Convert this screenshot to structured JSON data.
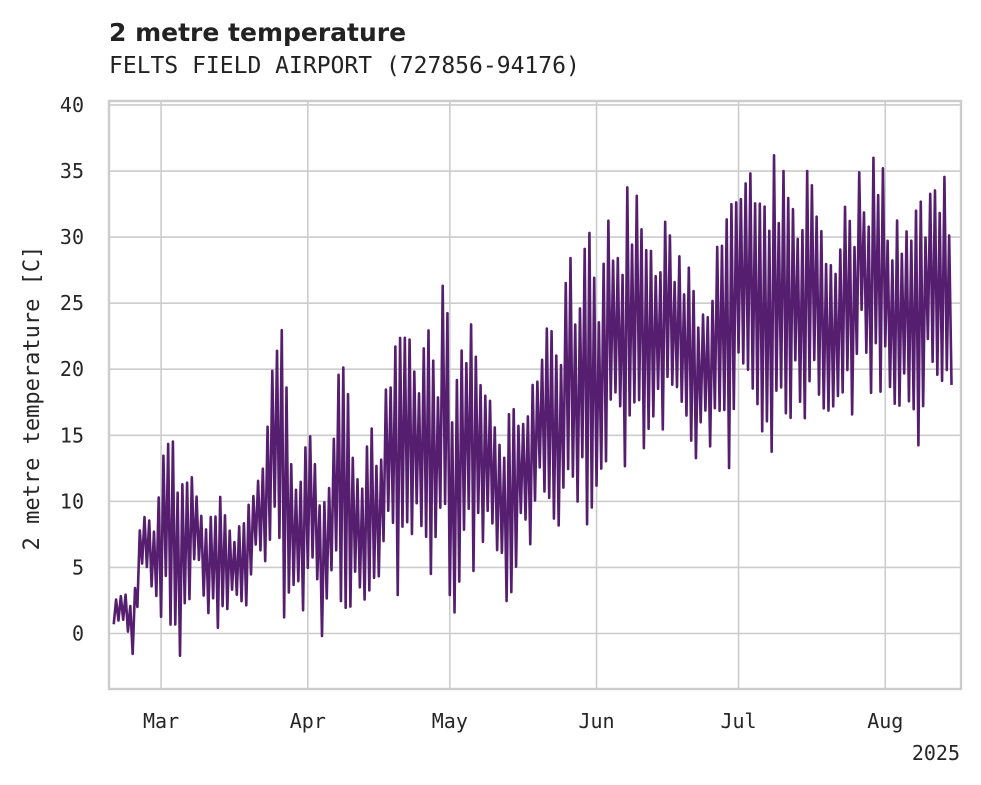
{
  "chart_data": {
    "type": "line",
    "title": "2 metre temperature",
    "subtitle": "FELTS FIELD AIRPORT (727856-94176)",
    "ylabel": "2 metre temperature [C]",
    "xlabel": "",
    "x_tick_labels": [
      "Mar",
      "Apr",
      "May",
      "Jun",
      "Jul",
      "Aug"
    ],
    "x_ticks": [
      "2025-03-01",
      "2025-04-01",
      "2025-05-01",
      "2025-06-01",
      "2025-07-01",
      "2025-08-01"
    ],
    "x_offset_label": "2025",
    "xlim": [
      "2025-02-18",
      "2025-08-17"
    ],
    "ylim": [
      -4.2,
      40.3
    ],
    "y_ticks": [
      0,
      5,
      10,
      15,
      20,
      25,
      30,
      35,
      40
    ],
    "grid": true,
    "line_color": "#561e6f",
    "series": [
      {
        "x": [
          "2025-02-19",
          "2025-02-21",
          "2025-02-23",
          "2025-02-25",
          "2025-02-27",
          "2025-03-01",
          "2025-03-03",
          "2025-03-05",
          "2025-03-07",
          "2025-03-09",
          "2025-03-11",
          "2025-03-13",
          "2025-03-15",
          "2025-03-17",
          "2025-03-19",
          "2025-03-21",
          "2025-03-23",
          "2025-03-25",
          "2025-03-27",
          "2025-03-29",
          "2025-03-31",
          "2025-04-02",
          "2025-04-04",
          "2025-04-06",
          "2025-04-08",
          "2025-04-10",
          "2025-04-12",
          "2025-04-14",
          "2025-04-16",
          "2025-04-18",
          "2025-04-20",
          "2025-04-22",
          "2025-04-24",
          "2025-04-26",
          "2025-04-28",
          "2025-04-30",
          "2025-05-02",
          "2025-05-04",
          "2025-05-06",
          "2025-05-08",
          "2025-05-10",
          "2025-05-12",
          "2025-05-14",
          "2025-05-16",
          "2025-05-18",
          "2025-05-20",
          "2025-05-22",
          "2025-05-24",
          "2025-05-26",
          "2025-05-28",
          "2025-05-30",
          "2025-06-01",
          "2025-06-03",
          "2025-06-05",
          "2025-06-07",
          "2025-06-09",
          "2025-06-11",
          "2025-06-13",
          "2025-06-15",
          "2025-06-17",
          "2025-06-19",
          "2025-06-21",
          "2025-06-23",
          "2025-06-25",
          "2025-06-27",
          "2025-06-29",
          "2025-07-01",
          "2025-07-03",
          "2025-07-05",
          "2025-07-07",
          "2025-07-09",
          "2025-07-11",
          "2025-07-13",
          "2025-07-15",
          "2025-07-17",
          "2025-07-19",
          "2025-07-21",
          "2025-07-23",
          "2025-07-25",
          "2025-07-27",
          "2025-07-29",
          "2025-07-31",
          "2025-08-02",
          "2025-08-04",
          "2025-08-06",
          "2025-08-08",
          "2025-08-10",
          "2025-08-12",
          "2025-08-14",
          "2025-08-15"
        ],
        "low": [
          0.1,
          0.8,
          -1.8,
          5.0,
          3.1,
          1.0,
          0.3,
          -2.0,
          2.0,
          4.5,
          1.0,
          -1.3,
          1.6,
          2.5,
          0.1,
          5.6,
          5.2,
          8.0,
          0.8,
          2.5,
          1.0,
          2.0,
          -0.2,
          3.0,
          1.8,
          0.9,
          -0.3,
          2.0,
          4.0,
          5.5,
          0.6,
          4.0,
          7.0,
          0.5,
          5.0,
          3.5,
          1.0,
          6.8,
          4.0,
          6.5,
          7.5,
          3.3,
          1.5,
          8.0,
          6.0,
          10.5,
          8.0,
          7.0,
          6.8,
          8.2,
          7.0,
          11.0,
          11.5,
          12.5,
          10.0,
          12.0,
          14.0,
          13.8,
          14.5,
          17.0,
          13.5,
          12.5,
          14.0,
          11.0,
          16.0,
          12.3,
          18.0,
          17.5,
          16.0,
          13.0,
          14.0,
          15.0,
          17.2,
          15.8,
          18.5,
          16.5,
          14.5,
          17.8,
          16.0,
          19.8,
          16.5,
          18.0,
          17.0,
          16.0,
          17.4,
          12.4,
          17.5,
          15.0,
          19.0,
          18.5
        ],
        "high": [
          2.2,
          3.9,
          1.8,
          10.5,
          8.5,
          13.0,
          17.8,
          10.5,
          15.0,
          11.0,
          8.0,
          12.5,
          11.0,
          7.0,
          12.0,
          11.5,
          15.5,
          23.3,
          25.5,
          12.5,
          14.0,
          16.2,
          12.0,
          14.5,
          21.8,
          17.5,
          14.0,
          19.0,
          14.0,
          20.5,
          22.8,
          23.0,
          20.6,
          25.6,
          21.0,
          28.8,
          19.0,
          22.5,
          25.8,
          20.0,
          18.5,
          15.5,
          17.0,
          19.0,
          17.5,
          23.5,
          26.0,
          23.5,
          31.5,
          26.5,
          32.0,
          27.5,
          31.0,
          34.3,
          33.5,
          36.0,
          33.0,
          29.0,
          31.7,
          30.0,
          30.5,
          29.0,
          25.8,
          29.8,
          29.5,
          33.0,
          35.5,
          37.3,
          33.5,
          32.0,
          37.8,
          35.0,
          32.5,
          36.5,
          35.0,
          31.5,
          30.0,
          33.3,
          32.5,
          36.2,
          36.0,
          38.3,
          32.5,
          33.5,
          31.0,
          34.0,
          35.0,
          36.3,
          36.6,
          30.0
        ]
      }
    ]
  }
}
